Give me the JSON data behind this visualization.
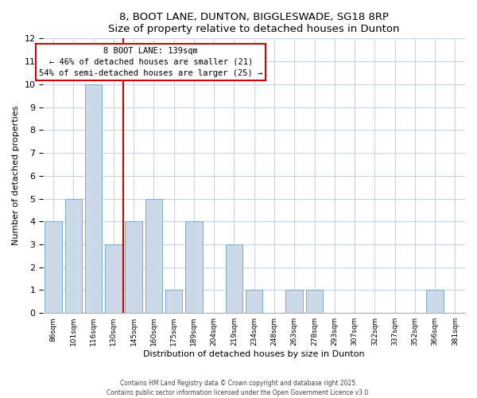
{
  "title": "8, BOOT LANE, DUNTON, BIGGLESWADE, SG18 8RP",
  "subtitle": "Size of property relative to detached houses in Dunton",
  "xlabel": "Distribution of detached houses by size in Dunton",
  "ylabel": "Number of detached properties",
  "categories": [
    "86sqm",
    "101sqm",
    "116sqm",
    "130sqm",
    "145sqm",
    "160sqm",
    "175sqm",
    "189sqm",
    "204sqm",
    "219sqm",
    "234sqm",
    "248sqm",
    "263sqm",
    "278sqm",
    "293sqm",
    "307sqm",
    "322sqm",
    "337sqm",
    "352sqm",
    "366sqm",
    "381sqm"
  ],
  "values": [
    4,
    5,
    10,
    3,
    4,
    5,
    1,
    4,
    0,
    3,
    1,
    0,
    1,
    1,
    0,
    0,
    0,
    0,
    0,
    1,
    0
  ],
  "bar_color": "#ccd9e8",
  "bar_edge_color": "#7aaac8",
  "ylim": [
    0,
    12
  ],
  "yticks": [
    0,
    1,
    2,
    3,
    4,
    5,
    6,
    7,
    8,
    9,
    10,
    11,
    12
  ],
  "annotation_title": "8 BOOT LANE: 139sqm",
  "annotation_line1": "← 46% of detached houses are smaller (21)",
  "annotation_line2": "54% of semi-detached houses are larger (25) →",
  "annotation_box_color": "#ffffff",
  "annotation_box_edge": "#cc0000",
  "property_line_x": 3.5,
  "footer_line1": "Contains HM Land Registry data © Crown copyright and database right 2025.",
  "footer_line2": "Contains public sector information licensed under the Open Government Licence v3.0.",
  "background_color": "#ffffff",
  "grid_color": "#c8d4e0"
}
